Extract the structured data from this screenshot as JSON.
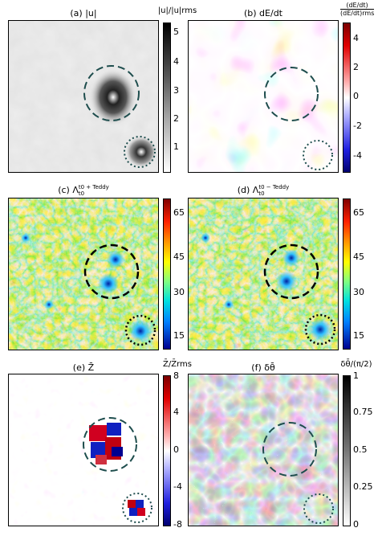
{
  "panels": {
    "a": {
      "title": "(a) |u|",
      "cbar_label": "|u|/|u|rms",
      "ticks": [
        "5",
        "4",
        "3",
        "2",
        "1"
      ]
    },
    "b": {
      "title": "(b) dE/dt",
      "cbar_num": "(dE/dt)",
      "cbar_den": "(dE/dt)rms",
      "ticks": [
        "4",
        "2",
        "0",
        "-2",
        "-4"
      ]
    },
    "c": {
      "title_main": "(c) Λ",
      "title_sup": "t0 + Teddy",
      "title_sub": "t0",
      "ticks": [
        "65",
        "45",
        "30",
        "15"
      ]
    },
    "d": {
      "title_main": "(d) Λ",
      "title_sup": "t0 − Teddy",
      "title_sub": "t0",
      "ticks": [
        "65",
        "45",
        "30",
        "15"
      ]
    },
    "e": {
      "title": "(e) Z̄",
      "cbar_label": "Z̄/Z̄rms",
      "ticks": [
        "8",
        "4",
        "0",
        "-4",
        "-8"
      ]
    },
    "f": {
      "title": "(f) δθ̄",
      "cbar_label": "δθ̄/(π/2)",
      "ticks": [
        "1",
        "0.75",
        "0.5",
        "0.25",
        "0"
      ]
    }
  },
  "colors": {
    "dashed_circle": "#1e4d4d",
    "ftle_circle": "#000000"
  }
}
